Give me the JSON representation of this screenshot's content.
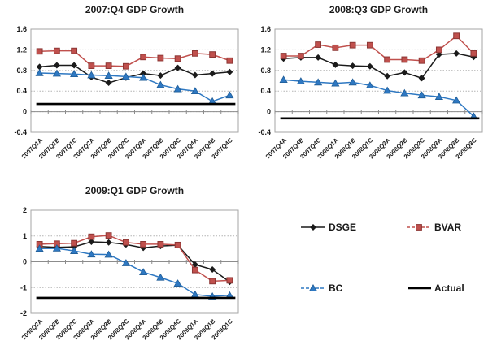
{
  "figure": {
    "background": "#ffffff"
  },
  "colors": {
    "dsge": "#1a1a1a",
    "bvar": "#c0504d",
    "bvar_edge": "#8c3634",
    "bc": "#2e78c2",
    "bc_edge": "#1f5c96",
    "actual": "#000000",
    "gridline": "#b3b3b3",
    "plot_border": "#a6a6a6",
    "axis": "#8c8c8c"
  },
  "legend": {
    "position": "bottom-right-quadrant",
    "items": [
      {
        "label": "DSGE",
        "marker": "diamond",
        "color": "#1a1a1a"
      },
      {
        "label": "BVAR",
        "marker": "square",
        "color": "#c0504d"
      },
      {
        "label": "BC",
        "marker": "triangle",
        "color": "#2e78c2"
      },
      {
        "label": "Actual",
        "marker": "line",
        "color": "#000000"
      }
    ]
  },
  "chart_data": [
    {
      "type": "line",
      "title": "2007:Q4 GDP Growth",
      "xlabel": "",
      "ylabel": "",
      "ylim": [
        -0.4,
        1.6
      ],
      "yticks": [
        "1.6",
        "1.2",
        "0.8",
        "0.4",
        "0",
        "-0.4"
      ],
      "grid": true,
      "categories": [
        "2007Q1A",
        "2007Q1B",
        "2007Q1C",
        "2007Q2A",
        "2007Q2B",
        "2007Q2C",
        "2007Q3A",
        "2007Q3B",
        "2007Q3C",
        "2007Q4A",
        "2007Q4B",
        "2007Q4C"
      ],
      "series": [
        {
          "name": "DSGE",
          "marker": "diamond",
          "color": "#1a1a1a",
          "values": [
            0.87,
            0.9,
            0.9,
            0.67,
            0.56,
            0.66,
            0.74,
            0.7,
            0.85,
            0.71,
            0.74,
            0.77
          ]
        },
        {
          "name": "BVAR",
          "marker": "square",
          "color": "#c0504d",
          "values": [
            1.17,
            1.18,
            1.18,
            0.89,
            0.89,
            0.88,
            1.06,
            1.04,
            1.03,
            1.13,
            1.11,
            0.99
          ]
        },
        {
          "name": "BC",
          "marker": "triangle",
          "color": "#2e78c2",
          "values": [
            0.75,
            0.74,
            0.73,
            0.71,
            0.7,
            0.68,
            0.66,
            0.52,
            0.44,
            0.4,
            0.2,
            0.32
          ]
        },
        {
          "name": "Actual",
          "marker": "none",
          "color": "#000000",
          "constant": 0.15
        }
      ]
    },
    {
      "type": "line",
      "title": "2008:Q3 GDP Growth",
      "xlabel": "",
      "ylabel": "",
      "ylim": [
        -0.4,
        1.6
      ],
      "yticks": [
        "1.6",
        "1.2",
        "0.8",
        "0.4",
        "0",
        "-0.4"
      ],
      "grid": true,
      "categories": [
        "2007Q4A",
        "2007Q4B",
        "2007Q4C",
        "2008Q1A",
        "2008Q1B",
        "2008Q1C",
        "2008Q2A",
        "2008Q2B",
        "2008Q2C",
        "2008Q3A",
        "2008Q3B",
        "2008Q3C"
      ],
      "series": [
        {
          "name": "DSGE",
          "marker": "diamond",
          "color": "#1a1a1a",
          "values": [
            1.03,
            1.05,
            1.05,
            0.91,
            0.89,
            0.88,
            0.69,
            0.76,
            0.65,
            1.11,
            1.13,
            1.06
          ]
        },
        {
          "name": "BVAR",
          "marker": "square",
          "color": "#c0504d",
          "values": [
            1.08,
            1.08,
            1.3,
            1.24,
            1.29,
            1.29,
            1.01,
            1.01,
            0.99,
            1.2,
            1.47,
            1.13
          ]
        },
        {
          "name": "BC",
          "marker": "triangle",
          "color": "#2e78c2",
          "values": [
            0.62,
            0.59,
            0.57,
            0.55,
            0.57,
            0.51,
            0.41,
            0.36,
            0.32,
            0.29,
            0.22,
            -0.09
          ]
        },
        {
          "name": "Actual",
          "marker": "none",
          "color": "#000000",
          "constant": -0.13
        }
      ]
    },
    {
      "type": "line",
      "title": "2009:Q1 GDP Growth",
      "xlabel": "",
      "ylabel": "",
      "ylim": [
        -2,
        2
      ],
      "yticks": [
        "2",
        "1",
        "0",
        "-1",
        "-2"
      ],
      "grid": true,
      "categories": [
        "2008Q2A",
        "2008Q2B",
        "2008Q2C",
        "2008Q3A",
        "2008Q3B",
        "2008Q3C",
        "2008Q4A",
        "2008Q4B",
        "2008Q4C",
        "2009Q1A",
        "2009Q1B",
        "2009Q1C"
      ],
      "series": [
        {
          "name": "DSGE",
          "marker": "diamond",
          "color": "#1a1a1a",
          "values": [
            0.59,
            0.56,
            0.58,
            0.77,
            0.75,
            0.67,
            0.54,
            0.61,
            0.64,
            -0.11,
            -0.3,
            -0.78
          ]
        },
        {
          "name": "BVAR",
          "marker": "square",
          "color": "#c0504d",
          "values": [
            0.68,
            0.7,
            0.72,
            0.97,
            1.02,
            0.75,
            0.68,
            0.68,
            0.65,
            -0.32,
            -0.75,
            -0.72
          ]
        },
        {
          "name": "BC",
          "marker": "triangle",
          "color": "#2e78c2",
          "values": [
            0.51,
            0.52,
            0.42,
            0.29,
            0.28,
            -0.05,
            -0.4,
            -0.61,
            -0.84,
            -1.27,
            -1.34,
            -1.3
          ]
        },
        {
          "name": "Actual",
          "marker": "none",
          "color": "#000000",
          "constant": -1.4
        }
      ]
    }
  ]
}
